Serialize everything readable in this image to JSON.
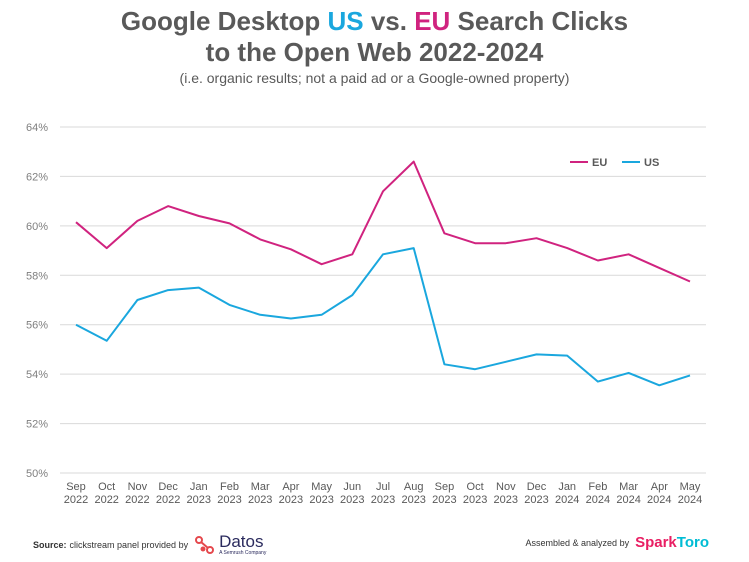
{
  "header": {
    "title_a": "Google Desktop ",
    "title_us": "US",
    "title_b": " vs. ",
    "title_eu": "EU",
    "title_c": " Search Clicks",
    "title_line2": "to the Open Web 2022-2024",
    "subtitle": "(i.e. organic results; not a paid ad or a Google-owned property)"
  },
  "footer": {
    "source_label": "Source:",
    "source_text": "clickstream panel provided by",
    "datos_name": "Datos",
    "datos_sub": "A Semrush Company",
    "assembled_text": "Assembled & analyzed by",
    "spark_1": "Spark",
    "spark_2": "Toro"
  },
  "colors": {
    "eu": "#d0237f",
    "us": "#1aa7de",
    "grid": "#d9d9d9",
    "text": "#595959"
  },
  "chart_data": {
    "type": "line",
    "title": "Google Desktop US vs. EU Search Clicks to the Open Web 2022-2024",
    "subtitle": "(i.e. organic results; not a paid ad or a Google-owned property)",
    "categories": [
      [
        "Sep",
        "2022"
      ],
      [
        "Oct",
        "2022"
      ],
      [
        "Nov",
        "2022"
      ],
      [
        "Dec",
        "2022"
      ],
      [
        "Jan",
        "2023"
      ],
      [
        "Feb",
        "2023"
      ],
      [
        "Mar",
        "2023"
      ],
      [
        "Apr",
        "2023"
      ],
      [
        "May",
        "2023"
      ],
      [
        "Jun",
        "2023"
      ],
      [
        "Jul",
        "2023"
      ],
      [
        "Aug",
        "2023"
      ],
      [
        "Sep",
        "2023"
      ],
      [
        "Oct",
        "2023"
      ],
      [
        "Nov",
        "2023"
      ],
      [
        "Dec",
        "2023"
      ],
      [
        "Jan",
        "2024"
      ],
      [
        "Feb",
        "2024"
      ],
      [
        "Mar",
        "2024"
      ],
      [
        "Apr",
        "2024"
      ],
      [
        "May",
        "2024"
      ]
    ],
    "series": [
      {
        "name": "EU",
        "color": "#d0237f",
        "values": [
          60.15,
          59.1,
          60.2,
          60.8,
          60.4,
          60.1,
          59.45,
          59.05,
          58.45,
          58.85,
          61.4,
          62.6,
          59.7,
          59.3,
          59.3,
          59.5,
          59.1,
          58.6,
          58.85,
          58.3,
          57.75
        ]
      },
      {
        "name": "US",
        "color": "#1aa7de",
        "values": [
          56.0,
          55.35,
          57.0,
          57.4,
          57.5,
          56.8,
          56.4,
          56.25,
          56.4,
          57.2,
          58.85,
          59.1,
          54.4,
          54.2,
          54.5,
          54.8,
          54.75,
          53.7,
          54.05,
          53.55,
          53.95
        ]
      }
    ],
    "ylim": [
      50,
      64
    ],
    "yticks": [
      "50%",
      "52%",
      "54%",
      "56%",
      "58%",
      "60%",
      "62%",
      "64%"
    ],
    "grid": true,
    "legend": "top-right"
  }
}
